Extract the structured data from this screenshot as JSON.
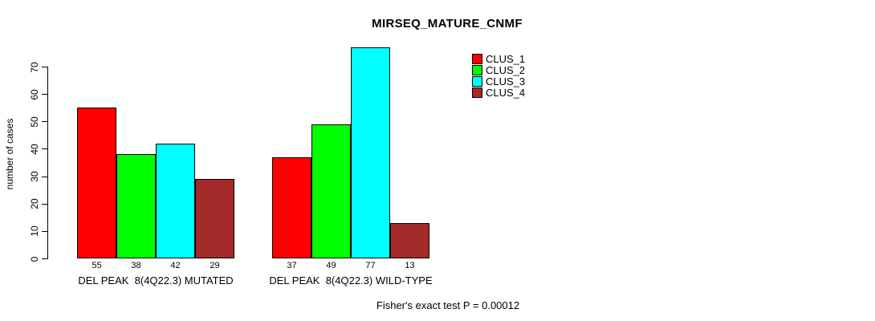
{
  "title": "MIRSEQ_MATURE_CNMF",
  "footer": "Fisher's exact test P = 0.00012",
  "chart_data": {
    "type": "bar",
    "title": "MIRSEQ_MATURE_CNMF",
    "ylabel": "number of cases",
    "xlabel": "",
    "ylim": [
      0,
      70
    ],
    "yticks": [
      0,
      10,
      20,
      30,
      40,
      50,
      60,
      70
    ],
    "grid": false,
    "bar_value_labels_shown": true,
    "categories": [
      "DEL PEAK  8(4Q22.3) MUTATED",
      "DEL PEAK  8(4Q22.3) WILD-TYPE"
    ],
    "series": [
      {
        "name": "CLUS_1",
        "color": "#ff0000",
        "values": [
          55,
          37
        ]
      },
      {
        "name": "CLUS_2",
        "color": "#00ff00",
        "values": [
          38,
          49
        ]
      },
      {
        "name": "CLUS_3",
        "color": "#00ffff",
        "values": [
          42,
          77
        ]
      },
      {
        "name": "CLUS_4",
        "color": "#a52a2a",
        "values": [
          29,
          13
        ]
      }
    ],
    "legend_position": "top-right",
    "annotation": "Fisher's exact test P = 0.00012"
  }
}
